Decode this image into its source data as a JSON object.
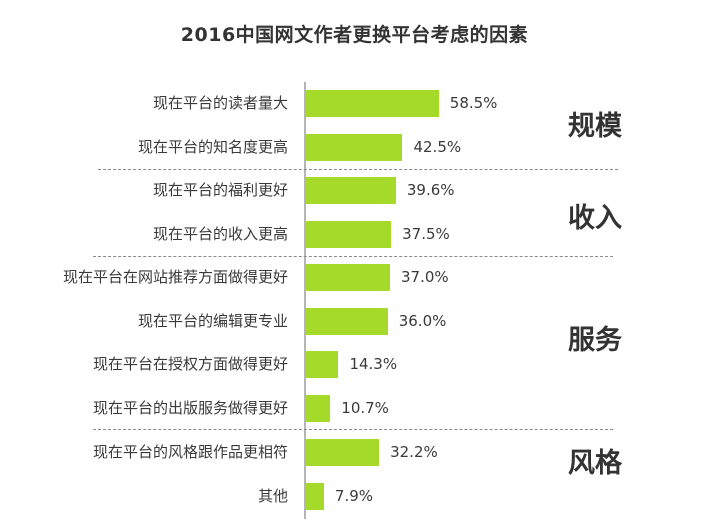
{
  "title": "2016中国网文作者更换平台考虑的因素",
  "rows": [
    {
      "label": "现在平台的读者量大",
      "value": "58.5%"
    },
    {
      "label": "现在平台的知名度更高",
      "value": "42.5%"
    },
    {
      "label": "现在平台的福利更好",
      "value": "39.6%"
    },
    {
      "label": "现在平台的收入更高",
      "value": "37.5%"
    },
    {
      "label": "现在平台在网站推荐方面做得更好",
      "value": "37.0%"
    },
    {
      "label": "现在平台的编辑更专业",
      "value": "36.0%"
    },
    {
      "label": "现在平台在授权方面做得更好",
      "value": "14.3%"
    },
    {
      "label": "现在平台的出版服务做得更好",
      "value": "10.7%"
    },
    {
      "label": "现在平台的风格跟作品更相符",
      "value": "32.2%"
    },
    {
      "label": "其他",
      "value": "7.9%"
    }
  ],
  "groups": [
    {
      "label": "规模"
    },
    {
      "label": "收入"
    },
    {
      "label": "服务"
    },
    {
      "label": "风格"
    }
  ],
  "colors": {
    "bar": "#a6da2a",
    "text": "#3a3a3a",
    "separator": "#8a8a8a"
  },
  "chart_data": {
    "type": "bar",
    "orientation": "horizontal",
    "title": "2016中国网文作者更换平台考虑的因素",
    "categories": [
      "现在平台的读者量大",
      "现在平台的知名度更高",
      "现在平台的福利更好",
      "现在平台的收入更高",
      "现在平台在网站推荐方面做得更好",
      "现在平台的编辑更专业",
      "现在平台在授权方面做得更好",
      "现在平台的出版服务做得更好",
      "现在平台的风格跟作品更相符",
      "其他"
    ],
    "values": [
      58.5,
      42.5,
      39.6,
      37.5,
      37.0,
      36.0,
      14.3,
      10.7,
      32.2,
      7.9
    ],
    "unit": "%",
    "groups": [
      {
        "name": "规模",
        "categories": [
          "现在平台的读者量大",
          "现在平台的知名度更高"
        ]
      },
      {
        "name": "收入",
        "categories": [
          "现在平台的福利更好",
          "现在平台的收入更高"
        ]
      },
      {
        "name": "服务",
        "categories": [
          "现在平台在网站推荐方面做得更好",
          "现在平台的编辑更专业",
          "现在平台在授权方面做得更好",
          "现在平台的出版服务做得更好"
        ]
      },
      {
        "name": "风格",
        "categories": [
          "现在平台的风格跟作品更相符",
          "其他"
        ]
      }
    ],
    "xlabel": "",
    "ylabel": "",
    "grid": false,
    "legend": "none"
  }
}
